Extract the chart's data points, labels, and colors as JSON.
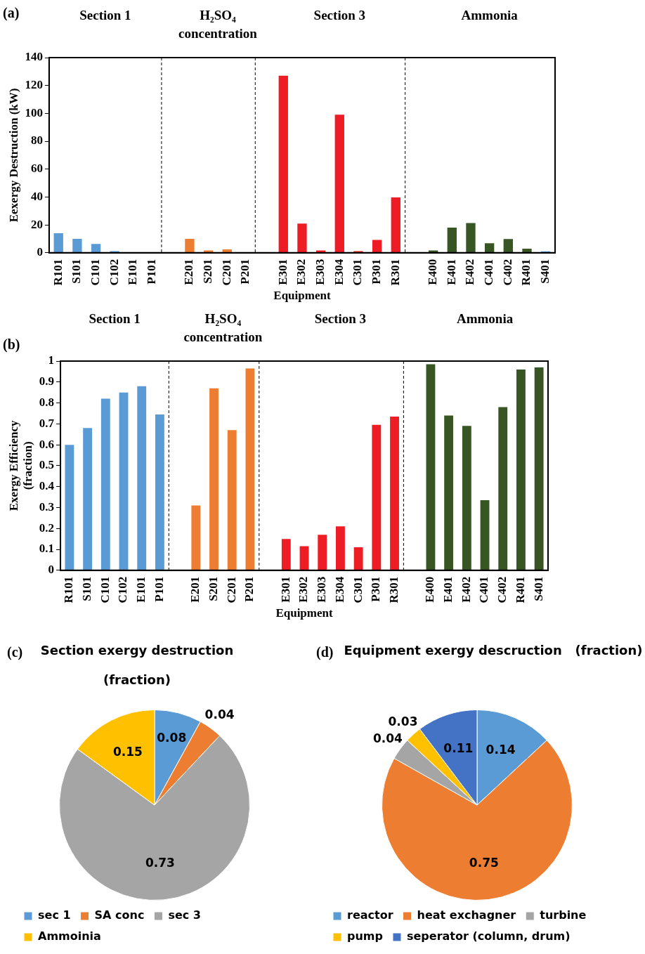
{
  "chart_data": [
    {
      "type": "bar",
      "annotations": [
        "(a)",
        "Section 1",
        "H₂SO₄ concentration",
        "Section 3",
        "Ammonia"
      ],
      "xlabel": "Equipment",
      "ylabel": "Eexergy Destruction (kW)",
      "categories": [
        "R101",
        "S101",
        "C101",
        "C102",
        "E101",
        "P101",
        null,
        "E201",
        "S201",
        "C201",
        "P201",
        null,
        "E301",
        "E302",
        "E303",
        "E304",
        "C301",
        "P301",
        "R301",
        null,
        "E400",
        "E401",
        "E402",
        "C401",
        "C402",
        "R401",
        "S401"
      ],
      "values": [
        14,
        10,
        6.3,
        1.2,
        0,
        0,
        null,
        10,
        1.7,
        2.4,
        0,
        null,
        127,
        21,
        1.7,
        99,
        1.2,
        9.2,
        39.7,
        null,
        1.7,
        18,
        21.3,
        6.8,
        9.9,
        2.9,
        1
      ],
      "colors": [
        "#5b9bd5",
        "#5b9bd5",
        "#5b9bd5",
        "#5b9bd5",
        "#5b9bd5",
        "#5b9bd5",
        null,
        "#ed7d31",
        "#ed7d31",
        "#ed7d31",
        "#ed7d31",
        null,
        "#ee1c24",
        "#ee1c24",
        "#ee1c24",
        "#ee1c24",
        "#ee1c24",
        "#ee1c24",
        "#ee1c24",
        null,
        "#375623",
        "#375623",
        "#375623",
        "#375623",
        "#375623",
        "#375623",
        "#5b9bd5"
      ],
      "ylim": [
        0,
        140
      ],
      "yticks": [
        0,
        20,
        40,
        60,
        80,
        100,
        120,
        140
      ],
      "grid": false
    },
    {
      "type": "bar",
      "annotations": [
        "(b)",
        "Section 1",
        "H₂SO₄ concentration",
        "Section 3",
        "Ammonia"
      ],
      "xlabel": "Equipment",
      "ylabel": "Exergy Efficiency (fraction)",
      "categories": [
        "R101",
        "S101",
        "C101",
        "C102",
        "E101",
        "P101",
        null,
        "E201",
        "S201",
        "C201",
        "P201",
        null,
        "E301",
        "E302",
        "E303",
        "E304",
        "C301",
        "P301",
        "R301",
        null,
        "E400",
        "E401",
        "E402",
        "C401",
        "C402",
        "R401",
        "S401"
      ],
      "values": [
        0.6,
        0.68,
        0.82,
        0.85,
        0.88,
        0.745,
        null,
        0.31,
        0.87,
        0.67,
        0.965,
        null,
        0.15,
        0.115,
        0.17,
        0.21,
        0.11,
        0.695,
        0.735,
        null,
        0.985,
        0.74,
        0.69,
        0.335,
        0.78,
        0.96,
        0.97
      ],
      "colors": [
        "#5b9bd5",
        "#5b9bd5",
        "#5b9bd5",
        "#5b9bd5",
        "#5b9bd5",
        "#5b9bd5",
        null,
        "#ed7d31",
        "#ed7d31",
        "#ed7d31",
        "#ed7d31",
        null,
        "#ee1c24",
        "#ee1c24",
        "#ee1c24",
        "#ee1c24",
        "#ee1c24",
        "#ee1c24",
        "#ee1c24",
        null,
        "#375623",
        "#375623",
        "#375623",
        "#375623",
        "#375623",
        "#375623",
        "#375623"
      ],
      "ylim": [
        0,
        1
      ],
      "yticks": [
        0,
        0.1,
        0.2,
        0.3,
        0.4,
        0.5,
        0.6,
        0.7,
        0.8,
        0.9,
        1
      ],
      "grid": false
    },
    {
      "type": "pie",
      "title": "Section exergy destruction (fraction)",
      "annotations": [
        "(c)"
      ],
      "categories": [
        "sec 1",
        "SA conc",
        "sec 3",
        "Ammoinia"
      ],
      "values": [
        0.08,
        0.04,
        0.73,
        0.15
      ],
      "colors": [
        "#5b9bd5",
        "#ed7d31",
        "#a5a5a5",
        "#ffc000"
      ],
      "data_labels": true,
      "legend": "bottom"
    },
    {
      "type": "pie",
      "title": "Equipment exergy descruction   (fraction)",
      "annotations": [
        "(d)"
      ],
      "categories": [
        "reactor",
        "heat exchagner",
        "turbine",
        "pump",
        "seperator (column, drum)"
      ],
      "values": [
        0.14,
        0.75,
        0.04,
        0.03,
        0.11
      ],
      "colors": [
        "#5b9bd5",
        "#ed7d31",
        "#a5a5a5",
        "#ffc000",
        "#4472c4"
      ],
      "data_labels": true,
      "legend": "bottom"
    }
  ]
}
